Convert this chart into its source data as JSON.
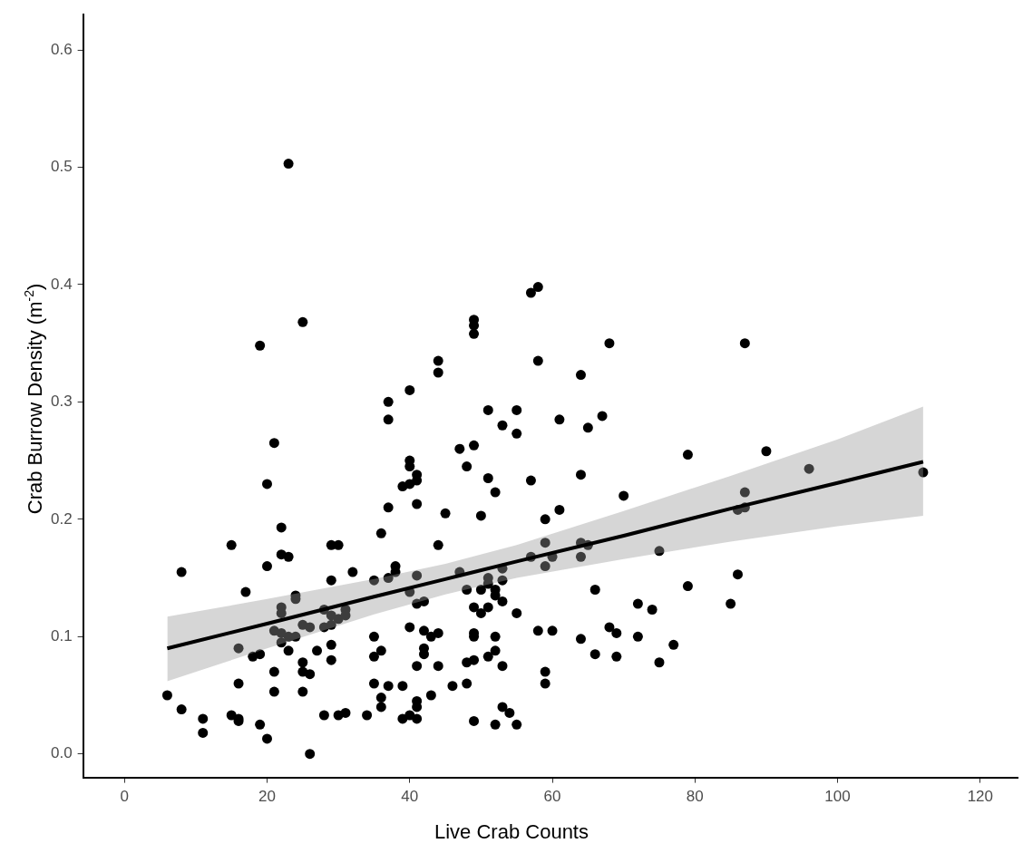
{
  "chart_data": {
    "type": "scatter",
    "xlabel": "Live Crab Counts",
    "ylabel": "Crab Burrow Density (m$^{-2}$)",
    "xlim": [
      -5.8,
      125.3
    ],
    "ylim": [
      -0.02,
      0.63
    ],
    "xticks": [
      0,
      20,
      40,
      60,
      80,
      100,
      120
    ],
    "yticks": [
      {
        "value": 0,
        "label": "0.0"
      },
      {
        "value": 0.1,
        "label": "0.1"
      },
      {
        "value": 0.2,
        "label": "0.2"
      },
      {
        "value": 0.3,
        "label": "0.3"
      },
      {
        "value": 0.4,
        "label": "0.4"
      },
      {
        "value": 0.5,
        "label": "0.5"
      },
      {
        "value": 0.6,
        "label": "0.6"
      }
    ],
    "grid": false,
    "legend": false,
    "series": [
      {
        "color": "#000000",
        "marker": "circle",
        "x": [
          6,
          8,
          8,
          11,
          11,
          15,
          15,
          16,
          16,
          16,
          16,
          17,
          18,
          19,
          19,
          19,
          20,
          20,
          20,
          21,
          21,
          21,
          21,
          22,
          22,
          22,
          22,
          22,
          22,
          23,
          23,
          23,
          23,
          24,
          24,
          24,
          25,
          25,
          25,
          25,
          25,
          26,
          26,
          26,
          27,
          28,
          28,
          28,
          29,
          29,
          29,
          29,
          29,
          29,
          30,
          30,
          30,
          31,
          31,
          31,
          32,
          34,
          35,
          35,
          35,
          35,
          36,
          36,
          36,
          36,
          37,
          37,
          37,
          37,
          37,
          38,
          38,
          39,
          39,
          39,
          40,
          40,
          40,
          40,
          40,
          40,
          40,
          41,
          41,
          41,
          41,
          41,
          41,
          41,
          41,
          41,
          42,
          42,
          42,
          42,
          43,
          43,
          44,
          44,
          44,
          44,
          44,
          45,
          46,
          47,
          47,
          48,
          48,
          48,
          48,
          49,
          49,
          49,
          49,
          49,
          49,
          49,
          49,
          49,
          50,
          50,
          50,
          51,
          51,
          51,
          51,
          51,
          51,
          52,
          52,
          52,
          52,
          52,
          52,
          53,
          53,
          53,
          53,
          53,
          53,
          54,
          55,
          55,
          55,
          55,
          57,
          57,
          57,
          58,
          58,
          58,
          59,
          59,
          59,
          59,
          59,
          60,
          60,
          61,
          61,
          64,
          64,
          64,
          64,
          64,
          65,
          65,
          66,
          66,
          67,
          68,
          68,
          69,
          69,
          70,
          72,
          72,
          74,
          75,
          75,
          77,
          79,
          79,
          85,
          86,
          86,
          87,
          87,
          87,
          90,
          96,
          112
        ],
        "values": [
          0.05,
          0.155,
          0.038,
          0.03,
          0.018,
          0.178,
          0.033,
          0.09,
          0.06,
          0.03,
          0.028,
          0.138,
          0.083,
          0.348,
          0.085,
          0.025,
          0.23,
          0.16,
          0.013,
          0.265,
          0.105,
          0.07,
          0.053,
          0.193,
          0.17,
          0.125,
          0.12,
          0.103,
          0.095,
          0.503,
          0.168,
          0.1,
          0.088,
          0.135,
          0.132,
          0.1,
          0.368,
          0.11,
          0.078,
          0.07,
          0.053,
          0.108,
          0.068,
          0.0,
          0.088,
          0.123,
          0.108,
          0.033,
          0.178,
          0.148,
          0.118,
          0.11,
          0.093,
          0.08,
          0.178,
          0.115,
          0.033,
          0.123,
          0.118,
          0.035,
          0.155,
          0.033,
          0.148,
          0.1,
          0.083,
          0.06,
          0.188,
          0.088,
          0.048,
          0.04,
          0.3,
          0.285,
          0.21,
          0.15,
          0.058,
          0.16,
          0.155,
          0.228,
          0.058,
          0.03,
          0.31,
          0.25,
          0.245,
          0.23,
          0.138,
          0.108,
          0.033,
          0.238,
          0.233,
          0.213,
          0.152,
          0.128,
          0.075,
          0.045,
          0.04,
          0.03,
          0.13,
          0.105,
          0.09,
          0.085,
          0.1,
          0.05,
          0.335,
          0.325,
          0.178,
          0.103,
          0.075,
          0.205,
          0.058,
          0.26,
          0.155,
          0.245,
          0.14,
          0.078,
          0.06,
          0.37,
          0.365,
          0.358,
          0.263,
          0.125,
          0.103,
          0.1,
          0.08,
          0.028,
          0.203,
          0.14,
          0.12,
          0.293,
          0.235,
          0.15,
          0.145,
          0.125,
          0.083,
          0.223,
          0.14,
          0.135,
          0.1,
          0.088,
          0.025,
          0.28,
          0.158,
          0.148,
          0.13,
          0.075,
          0.04,
          0.035,
          0.293,
          0.273,
          0.12,
          0.025,
          0.393,
          0.233,
          0.168,
          0.398,
          0.335,
          0.105,
          0.2,
          0.18,
          0.16,
          0.07,
          0.06,
          0.168,
          0.105,
          0.285,
          0.208,
          0.323,
          0.238,
          0.18,
          0.168,
          0.098,
          0.278,
          0.178,
          0.14,
          0.085,
          0.288,
          0.35,
          0.108,
          0.103,
          0.083,
          0.22,
          0.128,
          0.1,
          0.123,
          0.173,
          0.078,
          0.093,
          0.255,
          0.143,
          0.128,
          0.208,
          0.153,
          0.35,
          0.223,
          0.21,
          0.258,
          0.243,
          0.24
        ]
      },
      {
        "type": "line",
        "color": "#000000",
        "marker": "none",
        "x": [
          6,
          20,
          35,
          45,
          55,
          70,
          85,
          100,
          112
        ],
        "values": [
          0.09,
          0.111,
          0.134,
          0.149,
          0.164,
          0.186,
          0.209,
          0.231,
          0.249
        ],
        "lower": [
          0.062,
          0.09,
          0.119,
          0.136,
          0.15,
          0.166,
          0.181,
          0.194,
          0.203
        ],
        "upper": [
          0.117,
          0.132,
          0.149,
          0.162,
          0.178,
          0.207,
          0.237,
          0.268,
          0.296
        ]
      }
    ]
  }
}
